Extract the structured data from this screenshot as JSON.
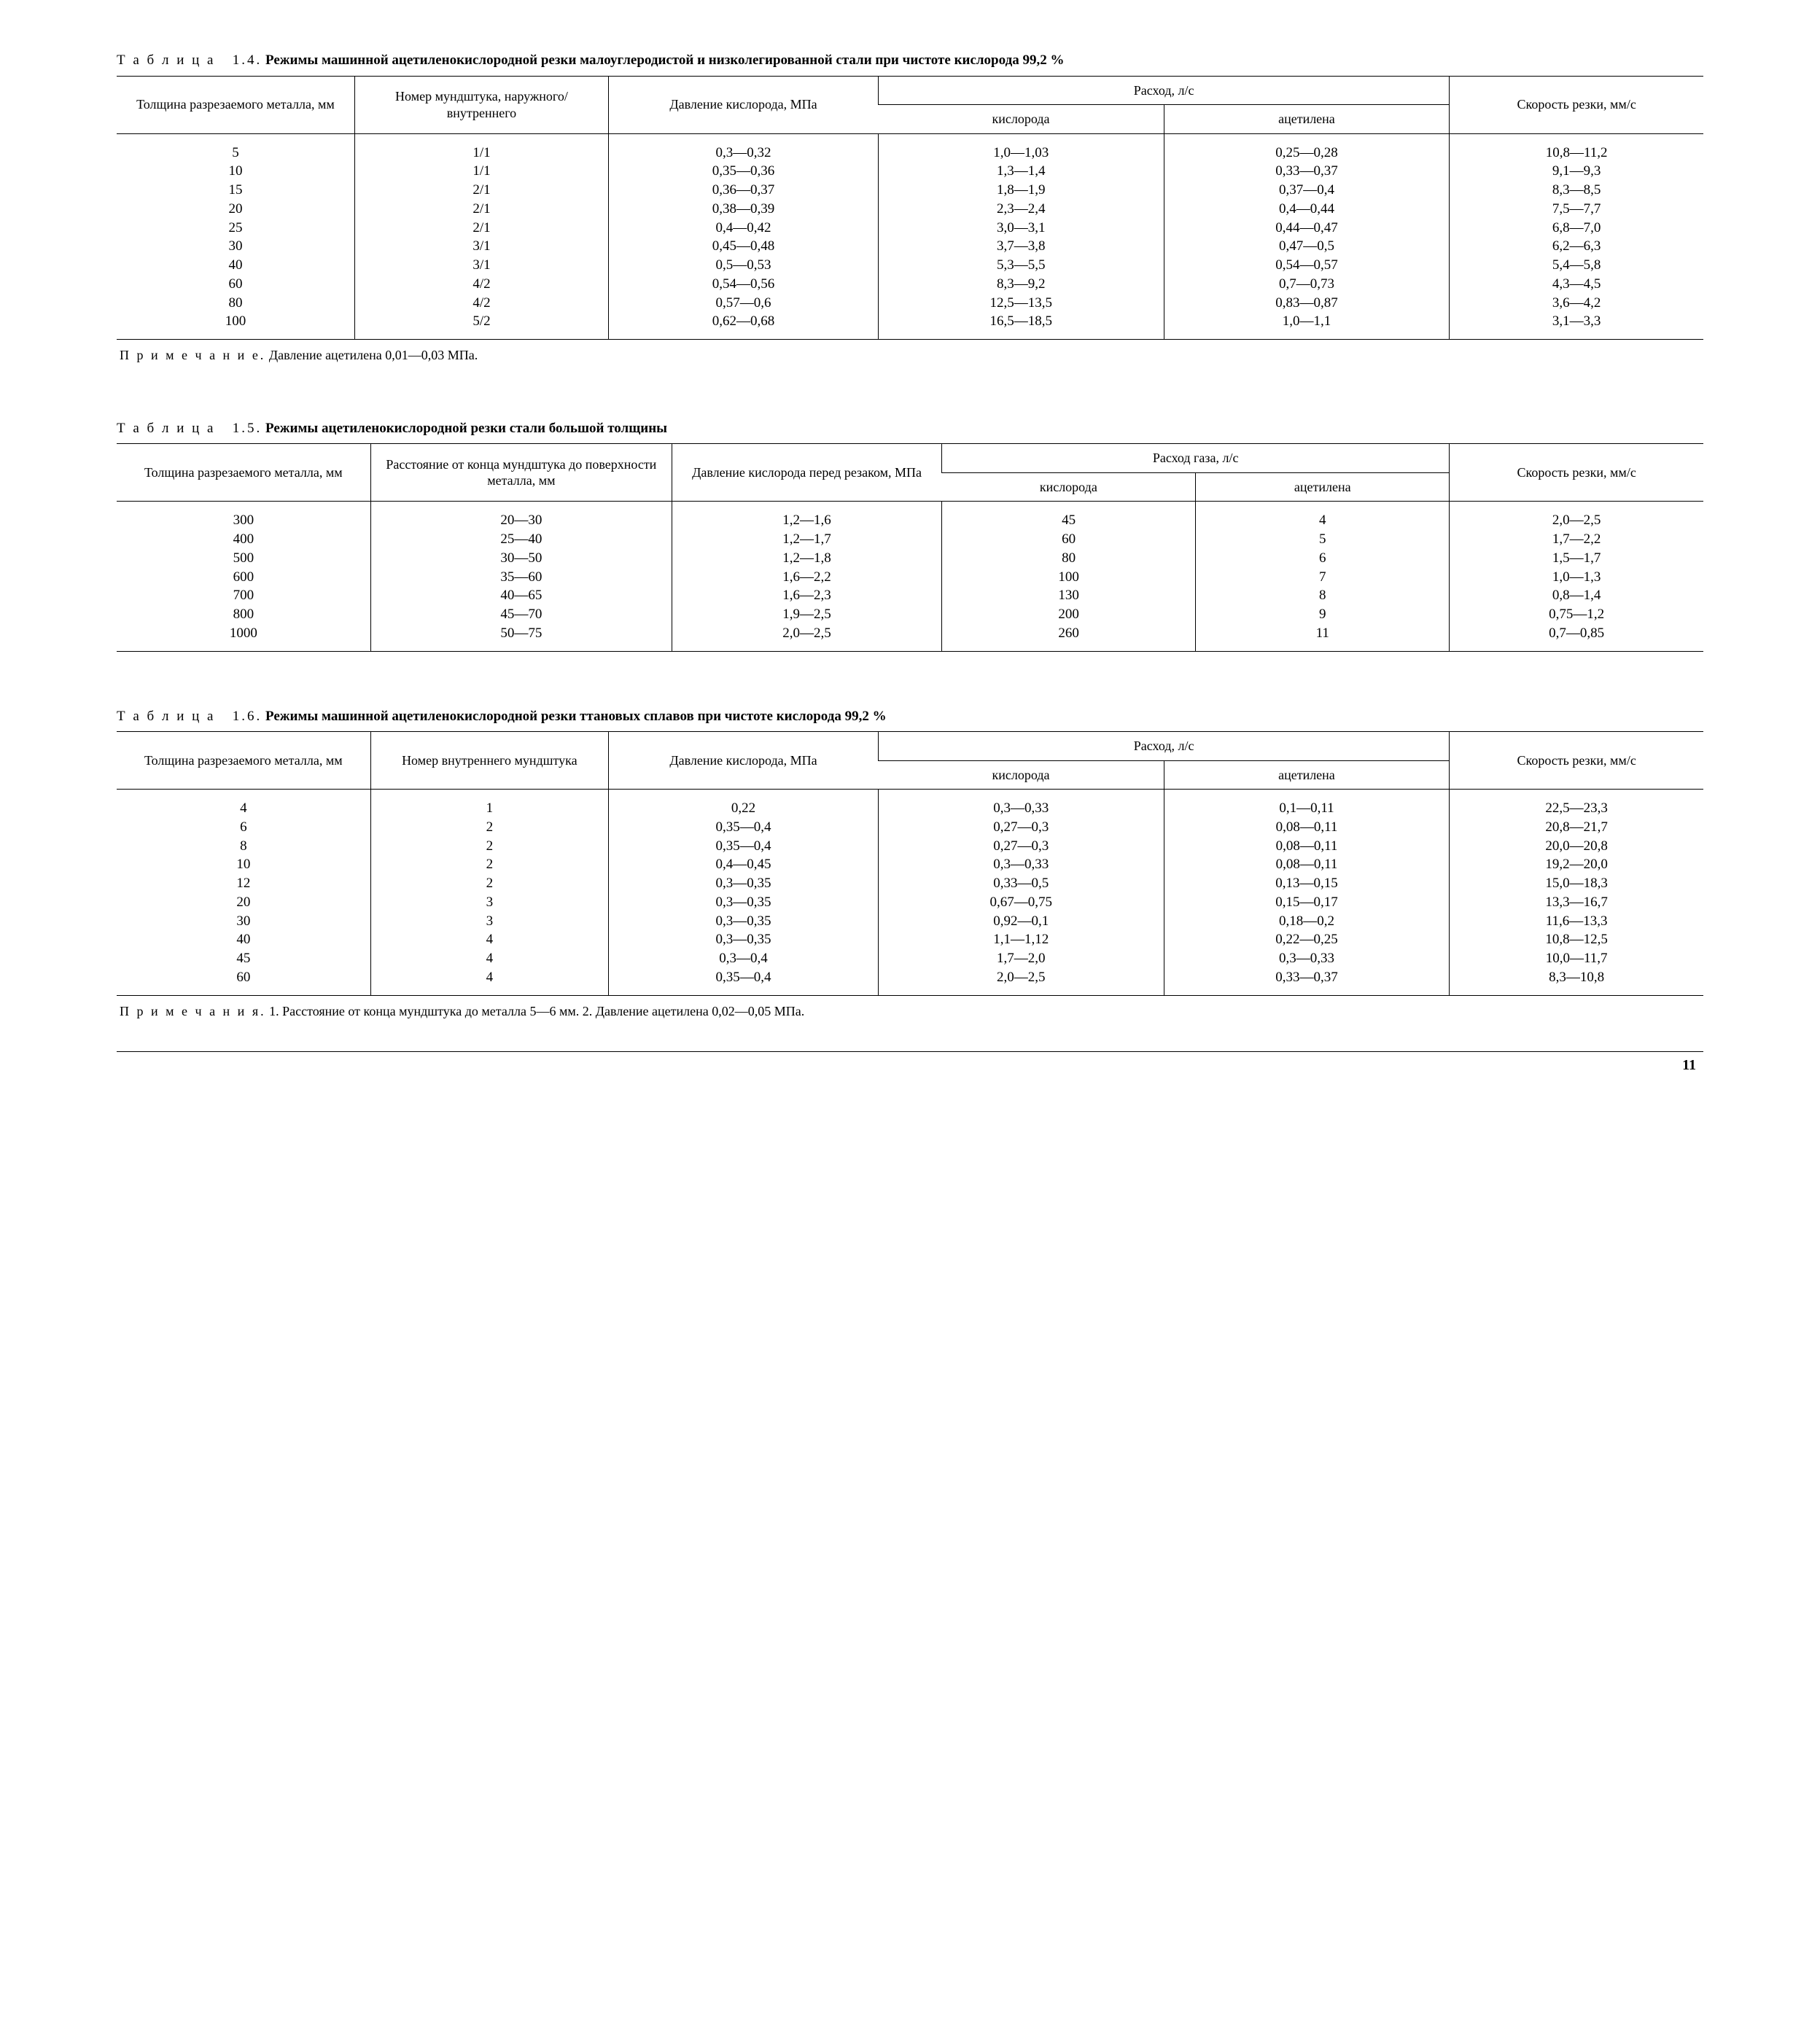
{
  "page_number": "11",
  "table14": {
    "caption_label": "Т а б л и ц а   1.4.",
    "caption_title": "Режимы машинной ацетиленокислородной резки малоуглеродистой и низколегированной стали при чистоте кислорода 99,2 %",
    "columns": {
      "c1": "Толщина разрезаемого металла, мм",
      "c2": "Номер мундштука, наружного/ внутреннего",
      "c3": "Давление кислорода, МПа",
      "c4": "Расход, л/с",
      "c4a": "кислорода",
      "c4b": "ацетилена",
      "c5": "Скорость резки, мм/с"
    },
    "rows": [
      [
        "5",
        "1/1",
        "0,3—0,32",
        "1,0—1,03",
        "0,25—0,28",
        "10,8—11,2"
      ],
      [
        "10",
        "1/1",
        "0,35—0,36",
        "1,3—1,4",
        "0,33—0,37",
        "9,1—9,3"
      ],
      [
        "15",
        "2/1",
        "0,36—0,37",
        "1,8—1,9",
        "0,37—0,4",
        "8,3—8,5"
      ],
      [
        "20",
        "2/1",
        "0,38—0,39",
        "2,3—2,4",
        "0,4—0,44",
        "7,5—7,7"
      ],
      [
        "25",
        "2/1",
        "0,4—0,42",
        "3,0—3,1",
        "0,44—0,47",
        "6,8—7,0"
      ],
      [
        "30",
        "3/1",
        "0,45—0,48",
        "3,7—3,8",
        "0,47—0,5",
        "6,2—6,3"
      ],
      [
        "40",
        "3/1",
        "0,5—0,53",
        "5,3—5,5",
        "0,54—0,57",
        "5,4—5,8"
      ],
      [
        "60",
        "4/2",
        "0,54—0,56",
        "8,3—9,2",
        "0,7—0,73",
        "4,3—4,5"
      ],
      [
        "80",
        "4/2",
        "0,57—0,6",
        "12,5—13,5",
        "0,83—0,87",
        "3,6—4,2"
      ],
      [
        "100",
        "5/2",
        "0,62—0,68",
        "16,5—18,5",
        "1,0—1,1",
        "3,1—3,3"
      ]
    ],
    "note_label": "П р и м е ч а н и е.",
    "note_text": "Давление ацетилена 0,01—0,03 МПа."
  },
  "table15": {
    "caption_label": "Т а б л и ц а   1.5.",
    "caption_title": "Режимы ацетиленокислородной резки стали большой толщины",
    "columns": {
      "c1": "Толщина разрезаемого металла, мм",
      "c2": "Расстояние от конца мундштука до поверхности металла, мм",
      "c3": "Давление кислорода перед резаком, МПа",
      "c4": "Расход газа, л/с",
      "c4a": "кислорода",
      "c4b": "ацетилена",
      "c5": "Скорость резки, мм/с"
    },
    "rows": [
      [
        "300",
        "20—30",
        "1,2—1,6",
        "45",
        "4",
        "2,0—2,5"
      ],
      [
        "400",
        "25—40",
        "1,2—1,7",
        "60",
        "5",
        "1,7—2,2"
      ],
      [
        "500",
        "30—50",
        "1,2—1,8",
        "80",
        "6",
        "1,5—1,7"
      ],
      [
        "600",
        "35—60",
        "1,6—2,2",
        "100",
        "7",
        "1,0—1,3"
      ],
      [
        "700",
        "40—65",
        "1,6—2,3",
        "130",
        "8",
        "0,8—1,4"
      ],
      [
        "800",
        "45—70",
        "1,9—2,5",
        "200",
        "9",
        "0,75—1,2"
      ],
      [
        "1000",
        "50—75",
        "2,0—2,5",
        "260",
        "11",
        "0,7—0,85"
      ]
    ]
  },
  "table16": {
    "caption_label": "Т а б л и ц а   1.6.",
    "caption_title": "Режимы машинной ацетиленокислородной резки ттановых сплавов при чистоте кислорода 99,2 %",
    "columns": {
      "c1": "Толщина разрезаемого металла, мм",
      "c2": "Номер внутреннего мундштука",
      "c3": "Давление кислорода, МПа",
      "c4": "Расход, л/с",
      "c4a": "кислорода",
      "c4b": "ацетилена",
      "c5": "Скорость резки, мм/с"
    },
    "rows": [
      [
        "4",
        "1",
        "0,22",
        "0,3—0,33",
        "0,1—0,11",
        "22,5—23,3"
      ],
      [
        "6",
        "2",
        "0,35—0,4",
        "0,27—0,3",
        "0,08—0,11",
        "20,8—21,7"
      ],
      [
        "8",
        "2",
        "0,35—0,4",
        "0,27—0,3",
        "0,08—0,11",
        "20,0—20,8"
      ],
      [
        "10",
        "2",
        "0,4—0,45",
        "0,3—0,33",
        "0,08—0,11",
        "19,2—20,0"
      ],
      [
        "12",
        "2",
        "0,3—0,35",
        "0,33—0,5",
        "0,13—0,15",
        "15,0—18,3"
      ],
      [
        "20",
        "3",
        "0,3—0,35",
        "0,67—0,75",
        "0,15—0,17",
        "13,3—16,7"
      ],
      [
        "30",
        "3",
        "0,3—0,35",
        "0,92—0,1",
        "0,18—0,2",
        "11,6—13,3"
      ],
      [
        "40",
        "4",
        "0,3—0,35",
        "1,1—1,12",
        "0,22—0,25",
        "10,8—12,5"
      ],
      [
        "45",
        "4",
        "0,3—0,4",
        "1,7—2,0",
        "0,3—0,33",
        "10,0—11,7"
      ],
      [
        "60",
        "4",
        "0,35—0,4",
        "2,0—2,5",
        "0,33—0,37",
        "8,3—10,8"
      ]
    ],
    "note_label": "П р и м е ч а н и я.",
    "note_text": "1. Расстояние от конца мундштука до металла 5—6 мм. 2. Давление ацетилена 0,02—0,05 МПа."
  }
}
